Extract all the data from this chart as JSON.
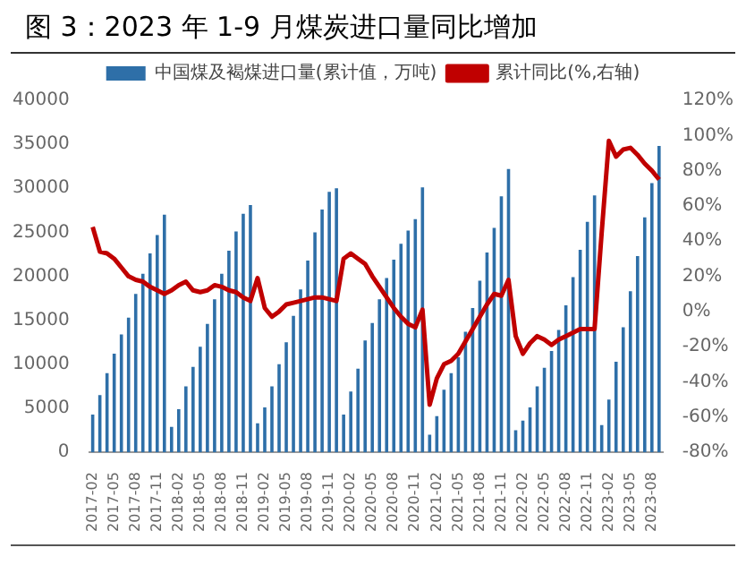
{
  "chart_data": {
    "type": "bar",
    "title": "图 3：2023 年 1-9 月煤炭进口量同比增加",
    "categories": [
      "2017-02",
      null,
      null,
      "2017-05",
      null,
      null,
      "2017-08",
      null,
      null,
      "2017-11",
      null,
      null,
      "2018-02",
      null,
      null,
      "2018-05",
      null,
      null,
      "2018-08",
      null,
      null,
      "2018-11",
      null,
      null,
      "2019-02",
      null,
      null,
      "2019-05",
      null,
      null,
      "2019-08",
      null,
      null,
      "2019-11",
      null,
      null,
      "2020-02",
      null,
      null,
      "2020-05",
      null,
      null,
      "2020-08",
      null,
      null,
      "2020-11",
      null,
      null,
      "2021-02",
      null,
      null,
      "2021-05",
      null,
      null,
      "2021-08",
      null,
      null,
      "2021-11",
      null,
      null,
      "2022-02",
      null,
      null,
      "2022-05",
      null,
      null,
      "2022-08",
      null,
      null,
      "2022-11",
      null,
      null,
      "2023-02",
      null,
      null,
      "2023-05",
      null,
      null,
      "2023-08",
      null
    ],
    "series": [
      {
        "name": "中国煤及褐煤进口量(累计值，万吨)",
        "color": "#2e6fa8",
        "values": [
          4300,
          6500,
          9000,
          11200,
          13400,
          15300,
          18000,
          20300,
          22600,
          24700,
          27000,
          2900,
          4900,
          7500,
          9700,
          12000,
          14600,
          17400,
          20300,
          22900,
          25100,
          27100,
          28100,
          3300,
          5100,
          7500,
          10000,
          12500,
          15500,
          18500,
          21800,
          25000,
          27600,
          29600,
          30000,
          4300,
          6900,
          9500,
          12700,
          14700,
          17400,
          19800,
          21900,
          23700,
          25200,
          26500,
          30100,
          2000,
          4100,
          7100,
          9000,
          10800,
          13700,
          16400,
          19500,
          22700,
          25500,
          29100,
          32200,
          2500,
          3600,
          5100,
          7500,
          9600,
          11500,
          13900,
          16700,
          19900,
          23000,
          26200,
          29200,
          3100,
          6000,
          10300,
          14200,
          18300,
          22300,
          26700,
          30600,
          34800
        ]
      },
      {
        "name": "累计同比(%,右轴)",
        "type": "line",
        "axis": "y2",
        "color": "#c00000",
        "values": [
          48,
          34,
          33,
          30,
          25,
          20,
          18,
          17,
          14,
          12,
          10,
          12,
          15,
          17,
          12,
          11,
          12,
          15,
          14,
          12,
          11,
          8,
          6,
          19,
          2,
          -3,
          0,
          4,
          5,
          6,
          7,
          8,
          8,
          7,
          6,
          30,
          33,
          30,
          27,
          20,
          14,
          8,
          2,
          -3,
          -7,
          -9,
          1,
          -53,
          -38,
          -30,
          -28,
          -24,
          -17,
          -10,
          -3,
          4,
          10,
          9,
          18,
          -14,
          -24,
          -18,
          -14,
          -16,
          -19,
          -16,
          -14,
          -12,
          -10,
          -10,
          -10,
          45,
          97,
          88,
          92,
          93,
          89,
          84,
          80,
          75
        ]
      }
    ],
    "ylim": [
      0,
      40000
    ],
    "yticks": [
      0,
      5000,
      10000,
      15000,
      20000,
      25000,
      30000,
      35000,
      40000
    ],
    "y2lim": [
      -80,
      120
    ],
    "y2ticks": [
      {
        "value": -80,
        "label": "-80%"
      },
      {
        "value": -60,
        "label": "-60%"
      },
      {
        "value": -40,
        "label": "-40%"
      },
      {
        "value": -20,
        "label": "-20%"
      },
      {
        "value": 0,
        "label": "0%"
      },
      {
        "value": 20,
        "label": "20%"
      },
      {
        "value": 40,
        "label": "40%"
      },
      {
        "value": 60,
        "label": "60%"
      },
      {
        "value": 80,
        "label": "80%"
      },
      {
        "value": 100,
        "label": "100%"
      },
      {
        "value": 120,
        "label": "120%"
      }
    ],
    "grid": false,
    "legend": "top",
    "marker": "none",
    "line_style": "solid"
  }
}
